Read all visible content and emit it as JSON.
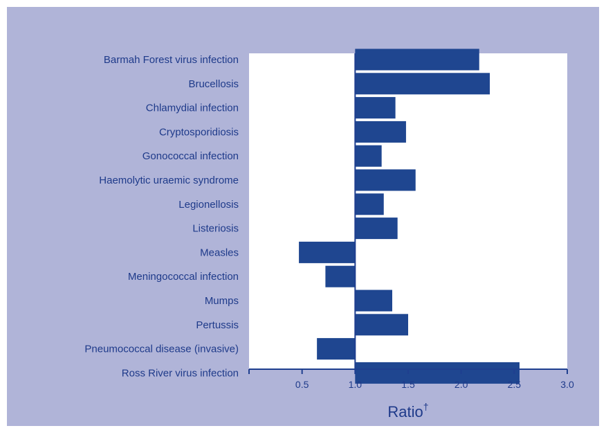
{
  "colors": {
    "panel": "#b0b4d8",
    "plot": "#ffffff",
    "bar": "#1f4690",
    "text": "#1e3a8a",
    "axis": "#1f3f8f"
  },
  "chart_data": {
    "type": "bar",
    "orientation": "horizontal",
    "baseline": 1.0,
    "categories": [
      "Barmah Forest virus infection",
      "Brucellosis",
      "Chlamydial infection",
      "Cryptosporidiosis",
      "Gonococcal infection",
      "Haemolytic uraemic syndrome",
      "Legionellosis",
      "Listeriosis",
      "Measles",
      "Meningococcal infection",
      "Mumps",
      "Pertussis",
      "Pneumococcal disease (invasive)",
      "Ross River virus infection"
    ],
    "values": [
      2.17,
      2.27,
      1.38,
      1.48,
      1.25,
      1.57,
      1.27,
      1.4,
      0.47,
      0.72,
      1.35,
      1.5,
      0.64,
      2.55
    ],
    "xlabel": "Ratio",
    "xlabel_superscript": "†",
    "xlim": [
      0,
      3.0
    ],
    "xticks": [
      0.5,
      1.0,
      1.5,
      2.0,
      2.5,
      3.0
    ],
    "xtick_labels": [
      "0.5",
      "1.0",
      "1.5",
      "2.0",
      "2.5",
      "3.0"
    ],
    "grid": false,
    "legend": "none"
  }
}
